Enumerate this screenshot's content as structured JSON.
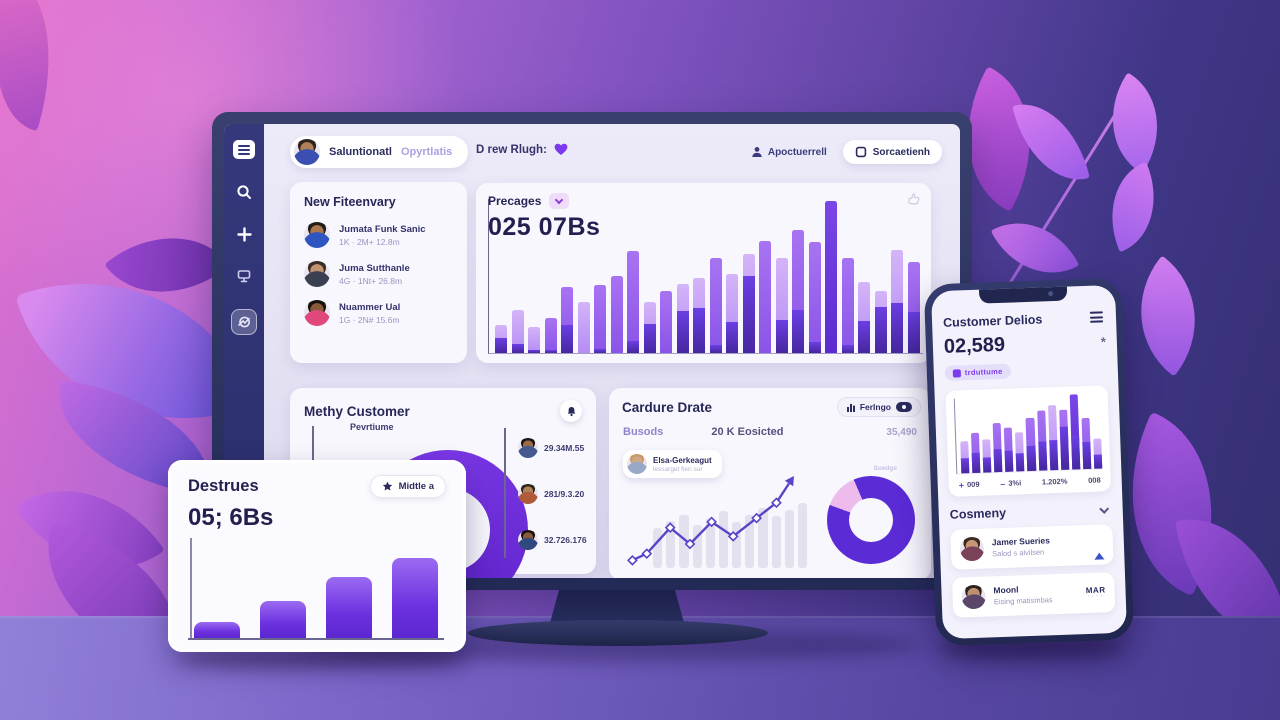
{
  "topbar": {
    "user_name": "Saluntionatl",
    "user_role": "Opyrtlatis",
    "search_text": "D rew Rlugh:",
    "profile_label": "Apoctuerrell",
    "device_button_label": "Sorcaetienh"
  },
  "sidebar": {
    "icons": [
      "menu",
      "search",
      "plus",
      "display",
      "analytics"
    ]
  },
  "followers_card": {
    "title": "New Fiteenvary",
    "items": [
      {
        "name": "Jumata Funk Sanic",
        "meta": "1K · 2M+ 12.8m"
      },
      {
        "name": "Juma Sutthanle",
        "meta": "4G · 1Nt+ 26.8m"
      },
      {
        "name": "Nuammer Ual",
        "meta": "1G · 2N# 15.6m"
      }
    ]
  },
  "precages_card": {
    "title": "Precages",
    "value": "025 07Bs"
  },
  "methy_card": {
    "title": "Methy Customer",
    "donut_label": "Pevrtiume",
    "rows": [
      {
        "value": "29.34M.55"
      },
      {
        "value": "281/9.3.20"
      },
      {
        "value": "32.726.176"
      }
    ]
  },
  "cardure_card": {
    "title": "Cardure Drate",
    "button_label": "Ferlngo",
    "col1": "Busods",
    "col2": "20 K Eosicted",
    "col3": "35,490",
    "chip_name": "Elsa-Gerkeagut",
    "chip_sub": "lessarget fieri sur",
    "donut_label": "Suedge"
  },
  "tablet_card": {
    "title": "Destrues",
    "button_label": "Midtle a",
    "value": "05; 6Bs"
  },
  "phone": {
    "title": "Customer Delios",
    "value": "02,589",
    "asterisk": "*",
    "badge": "trduttume",
    "stats": [
      {
        "prefix": "+",
        "label": "009"
      },
      {
        "prefix": "–",
        "label": "3%i"
      },
      {
        "prefix": "",
        "label": "1.202%"
      },
      {
        "prefix": "",
        "label": "008"
      }
    ],
    "section_title": "Cosmeny",
    "contacts": [
      {
        "name": "Jamer Sueries",
        "sub": "Salod s alvilsen",
        "right": ""
      },
      {
        "name": "Moonl",
        "sub": "Eising matismbas",
        "right": "MAR",
        "dots": "····"
      }
    ]
  },
  "colors": {
    "accent_purple": "#7c3aed",
    "deep_purple": "#5b2bd6",
    "navy_text": "#2a2a5e",
    "light_lavender": "#e4defa",
    "pink_accent": "#eebcec"
  },
  "chart_data": [
    {
      "id": "precages-bars",
      "type": "bar",
      "title": "Precages",
      "value_label": "025 07Bs",
      "unit": "percent of chart height",
      "series": [
        {
          "name": "total",
          "values": [
            18,
            28,
            17,
            23,
            43,
            33,
            44,
            50,
            66,
            33,
            40,
            45,
            49,
            62,
            51,
            64,
            73,
            62,
            80,
            72,
            99,
            62,
            46,
            40,
            67,
            59
          ]
        },
        {
          "name": "dark-bottom-fraction-of-bar",
          "values": [
            55,
            22,
            10,
            8,
            42,
            0,
            6,
            0,
            12,
            58,
            0,
            60,
            60,
            8,
            40,
            78,
            0,
            35,
            35,
            10,
            0,
            8,
            45,
            75,
            48,
            45
          ]
        }
      ],
      "tones": [
        "l",
        "l",
        "l",
        "m",
        "m",
        "l",
        "m",
        "m",
        "m",
        "l",
        "m",
        "l",
        "l",
        "m",
        "l",
        "l",
        "m",
        "l",
        "m",
        "m",
        "d",
        "m",
        "l",
        "l",
        "l",
        "m"
      ]
    },
    {
      "id": "phone-bars",
      "type": "bar",
      "unit": "percent of chart height",
      "series": [
        {
          "name": "total",
          "values": [
            42,
            53,
            44,
            65,
            58,
            51,
            70,
            79,
            86,
            79,
            100,
            67,
            40
          ]
        },
        {
          "name": "dark-bottom-fraction-of-bar",
          "values": [
            45,
            48,
            45,
            46,
            48,
            47,
            47,
            48,
            46,
            72,
            45,
            52,
            45
          ]
        }
      ],
      "tones": [
        "l",
        "m",
        "l",
        "m",
        "m",
        "l",
        "m",
        "m",
        "l",
        "m",
        "d",
        "m",
        "l"
      ]
    },
    {
      "id": "tablet-bars",
      "type": "bar",
      "unit": "percent of chart height",
      "values": [
        16,
        36,
        60,
        78
      ]
    },
    {
      "id": "cardure-line",
      "type": "line",
      "points_pct": [
        [
          3,
          8
        ],
        [
          11,
          15
        ],
        [
          24,
          42
        ],
        [
          35,
          25
        ],
        [
          47,
          48
        ],
        [
          59,
          33
        ],
        [
          72,
          52
        ],
        [
          83,
          68
        ]
      ],
      "arrow_end": [
        90,
        88
      ],
      "bg_bars": [
        46,
        55,
        62,
        50,
        58,
        66,
        54,
        62,
        70,
        60,
        68,
        76
      ]
    },
    {
      "id": "cardure-donut",
      "type": "pie",
      "slices": [
        {
          "name": "accent",
          "value": 13,
          "color": "#eebcec"
        },
        {
          "name": "main",
          "value": 87,
          "color": "#5b2bd6"
        }
      ]
    }
  ]
}
